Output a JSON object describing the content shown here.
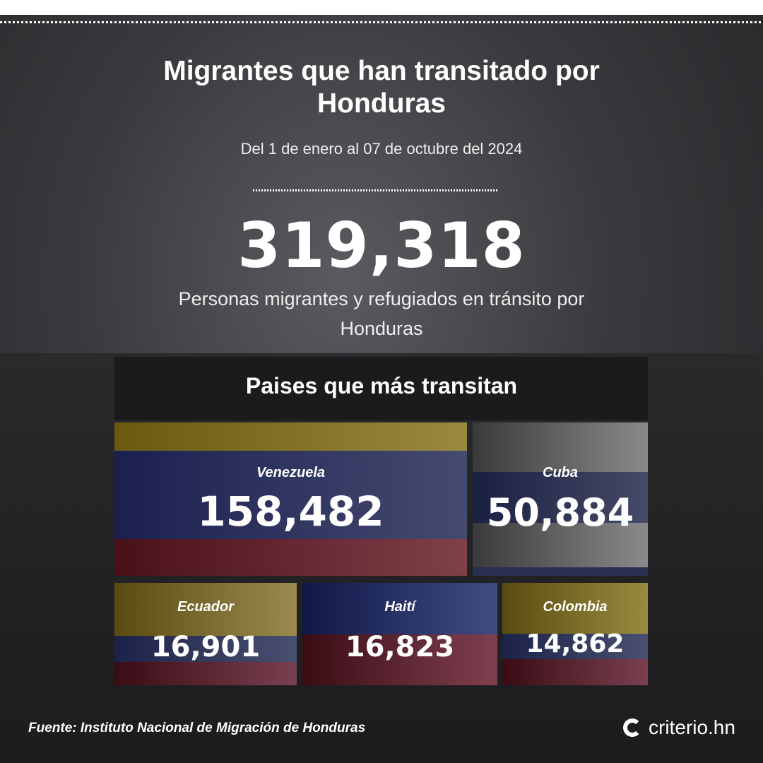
{
  "title": "Migrantes que han transitado por Honduras",
  "subtitle": "Del 1 de enero al 07 de octubre del 2024",
  "total": "319,318",
  "total_desc": "Personas migrantes y refugiados en tránsito por Honduras",
  "section_title": "Paises que más transitan",
  "countries": [
    {
      "name": "Venezuela",
      "value": "158,482"
    },
    {
      "name": "Cuba",
      "value": "50,884"
    },
    {
      "name": "Ecuador",
      "value": "16,901"
    },
    {
      "name": "Haití",
      "value": "16,823"
    },
    {
      "name": "Colombia",
      "value": "14,862"
    }
  ],
  "source": "Fuente: Instituto Nacional de Migración de Honduras",
  "brand": "criterio.hn"
}
